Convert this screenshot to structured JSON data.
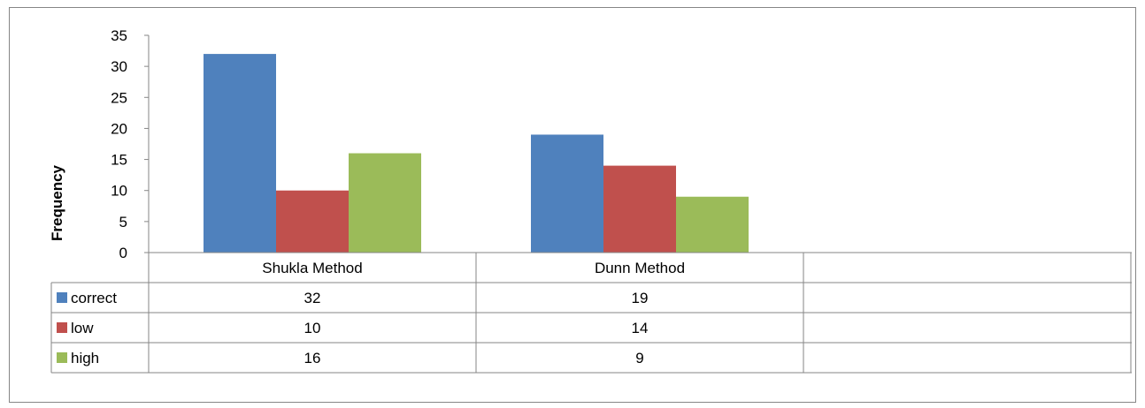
{
  "chart_data": {
    "type": "bar",
    "title": "",
    "xlabel": "",
    "ylabel": "Frequency",
    "ylim": [
      0,
      35
    ],
    "yticks": [
      0,
      5,
      10,
      15,
      20,
      25,
      30,
      35
    ],
    "grid": false,
    "legend": "data-table-left",
    "categories": [
      "Shukla Method",
      "Dunn Method",
      ""
    ],
    "series": [
      {
        "name": "correct",
        "color": "#4F81BD",
        "values": [
          32,
          19,
          null
        ]
      },
      {
        "name": "low",
        "color": "#C0504D",
        "values": [
          10,
          14,
          null
        ]
      },
      {
        "name": "high",
        "color": "#9BBB59",
        "values": [
          16,
          9,
          null
        ]
      }
    ],
    "table_values": [
      [
        "32",
        "19",
        ""
      ],
      [
        "10",
        "14",
        ""
      ],
      [
        "16",
        "9",
        ""
      ]
    ]
  }
}
